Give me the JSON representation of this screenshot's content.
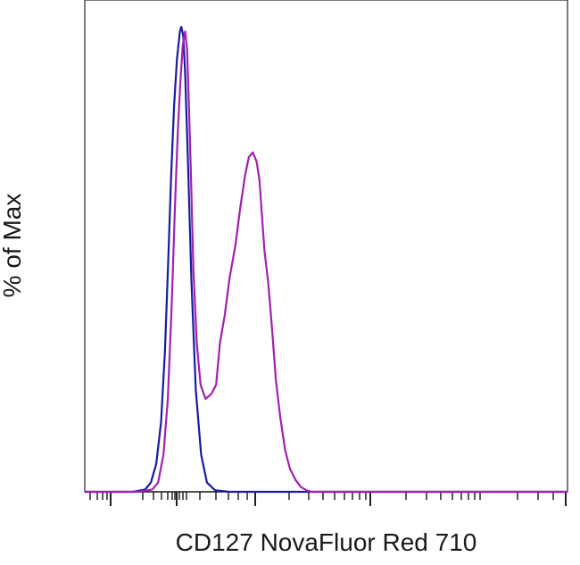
{
  "chart_data": {
    "type": "line",
    "title": "",
    "xlabel": "CD127 NovaFluor Red 710",
    "ylabel": "% of Max",
    "xlim": [
      0,
      1000
    ],
    "ylim": [
      0,
      100
    ],
    "grid": false,
    "legend": "none",
    "series": [
      {
        "color": "#1a1aa0",
        "x": [
          0,
          100,
          125,
          137,
          148,
          158,
          166,
          173,
          179,
          185,
          191,
          197,
          200,
          204,
          208,
          214,
          221,
          230,
          241,
          253,
          270,
          300,
          1000
        ],
        "y": [
          0,
          0,
          0.5,
          2,
          6,
          15,
          30,
          50,
          68,
          83,
          93,
          99,
          100,
          98,
          90,
          70,
          45,
          22,
          8,
          2,
          0.3,
          0,
          0
        ]
      },
      {
        "color": "#a020b0",
        "x": [
          0,
          110,
          140,
          152,
          163,
          172,
          180,
          187,
          193,
          198,
          203,
          208,
          212,
          216,
          220,
          225,
          232,
          240,
          250,
          262,
          272,
          280,
          290,
          300,
          312,
          322,
          332,
          340,
          348,
          356,
          362,
          368,
          372,
          380,
          388,
          396,
          405,
          415,
          425,
          437,
          448,
          460,
          470,
          490,
          1000
        ],
        "y": [
          0,
          0,
          0.5,
          2,
          8,
          20,
          40,
          62,
          78,
          88,
          96,
          99,
          95,
          82,
          68,
          48,
          32,
          23,
          20,
          21,
          23,
          32,
          38,
          46,
          53,
          61,
          68,
          72,
          73,
          71,
          67,
          58,
          52,
          45,
          35,
          24,
          16,
          9,
          5,
          2.5,
          1,
          0.3,
          0,
          0,
          0
        ]
      }
    ]
  }
}
